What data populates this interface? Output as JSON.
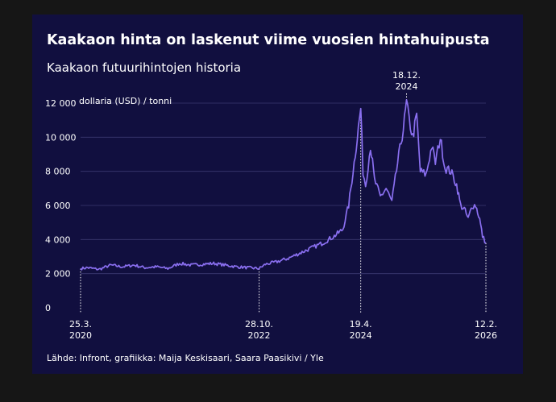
{
  "chart_data": {
    "type": "line",
    "title": "Kaakaon hinta on laskenut viime vuosien hintahuipusta",
    "subtitle": "Kaakaon futuurihintojen historia",
    "ylabel": "dollaria (USD) / tonni",
    "ylim": [
      0,
      12000
    ],
    "yticks": [
      {
        "value": 0,
        "label": "0"
      },
      {
        "value": 2000,
        "label": "2 000"
      },
      {
        "value": 4000,
        "label": "4 000"
      },
      {
        "value": 6000,
        "label": "6 000"
      },
      {
        "value": 8000,
        "label": "8 000"
      },
      {
        "value": 10000,
        "label": "10 000"
      },
      {
        "value": 12000,
        "label": "12 000"
      }
    ],
    "xlim": [
      "2020-03-25",
      "2026-02-12"
    ],
    "xticks": [
      {
        "date": "2020-03-25",
        "line1": "25.3.",
        "line2": "2020",
        "pos": "bottom"
      },
      {
        "date": "2022-10-28",
        "line1": "28.10.",
        "line2": "2022",
        "pos": "bottom"
      },
      {
        "date": "2024-04-19",
        "line1": "19.4.",
        "line2": "2024",
        "pos": "bottom"
      },
      {
        "date": "2024-12-18",
        "line1": "18.12.",
        "line2": "2024",
        "pos": "top"
      },
      {
        "date": "2026-02-12",
        "line1": "12.2.",
        "line2": "2026",
        "pos": "bottom"
      }
    ],
    "grid": true,
    "line_color": "#8a6ff0",
    "series": [
      {
        "points": [
          [
            "2020-03-25",
            2300
          ],
          [
            "2020-05-01",
            2350
          ],
          [
            "2020-07-01",
            2250
          ],
          [
            "2020-09-01",
            2500
          ],
          [
            "2020-11-01",
            2400
          ],
          [
            "2021-01-01",
            2500
          ],
          [
            "2021-03-01",
            2350
          ],
          [
            "2021-05-01",
            2400
          ],
          [
            "2021-07-01",
            2300
          ],
          [
            "2021-09-01",
            2600
          ],
          [
            "2021-11-01",
            2500
          ],
          [
            "2022-01-01",
            2550
          ],
          [
            "2022-03-01",
            2600
          ],
          [
            "2022-05-01",
            2500
          ],
          [
            "2022-07-01",
            2400
          ],
          [
            "2022-09-01",
            2350
          ],
          [
            "2022-10-28",
            2300
          ],
          [
            "2022-12-01",
            2550
          ],
          [
            "2023-02-01",
            2700
          ],
          [
            "2023-04-01",
            2900
          ],
          [
            "2023-06-01",
            3200
          ],
          [
            "2023-08-01",
            3500
          ],
          [
            "2023-10-01",
            3800
          ],
          [
            "2023-12-01",
            4200
          ],
          [
            "2024-01-15",
            4600
          ],
          [
            "2024-02-15",
            6000
          ],
          [
            "2024-03-15",
            8500
          ],
          [
            "2024-04-01",
            10000
          ],
          [
            "2024-04-19",
            11700
          ],
          [
            "2024-05-01",
            8000
          ],
          [
            "2024-05-15",
            7200
          ],
          [
            "2024-06-10",
            9500
          ],
          [
            "2024-07-01",
            7500
          ],
          [
            "2024-08-01",
            6500
          ],
          [
            "2024-09-01",
            7000
          ],
          [
            "2024-10-01",
            6200
          ],
          [
            "2024-11-01",
            8500
          ],
          [
            "2024-12-01",
            10500
          ],
          [
            "2024-12-18",
            12000
          ],
          [
            "2025-01-01",
            11000
          ],
          [
            "2025-01-20",
            10000
          ],
          [
            "2025-02-10",
            11300
          ],
          [
            "2025-03-01",
            8000
          ],
          [
            "2025-04-01",
            7800
          ],
          [
            "2025-05-01",
            9500
          ],
          [
            "2025-05-20",
            8500
          ],
          [
            "2025-06-15",
            10000
          ],
          [
            "2025-07-10",
            8200
          ],
          [
            "2025-08-10",
            8000
          ],
          [
            "2025-09-10",
            7200
          ],
          [
            "2025-10-01",
            6000
          ],
          [
            "2025-10-20",
            5800
          ],
          [
            "2025-11-10",
            5200
          ],
          [
            "2025-12-01",
            6000
          ],
          [
            "2025-12-20",
            6000
          ],
          [
            "2026-01-10",
            5200
          ],
          [
            "2026-01-25",
            4200
          ],
          [
            "2026-02-12",
            3800
          ]
        ]
      }
    ]
  },
  "source": "Lähde: Infront, grafiikka: Maija Keskisaari, Saara Paasikivi / Yle"
}
